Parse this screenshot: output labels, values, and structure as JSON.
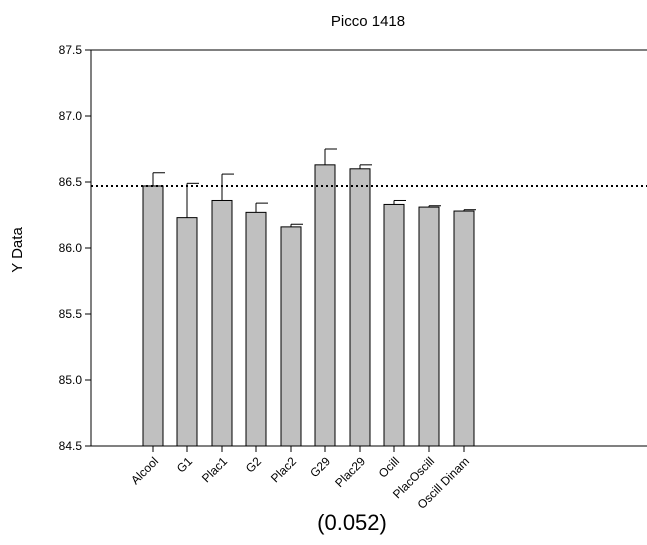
{
  "chart_data": {
    "type": "bar",
    "title": "Picco 1418",
    "xlabel": "",
    "ylabel": "Y Data",
    "footer": "(0.052)",
    "ylim": [
      84.5,
      87.5
    ],
    "yticks": [
      "84.5",
      "85.0",
      "85.5",
      "86.0",
      "86.5",
      "87.0",
      "87.5"
    ],
    "categories": [
      "Alcool",
      "G1",
      "Plac1",
      "G2",
      "Plac2",
      "G29",
      "Plac29",
      "Ocill",
      "PlacOscill",
      "Oscill Dinam"
    ],
    "groups": [
      [
        0
      ],
      [
        1,
        2
      ],
      [
        3,
        4
      ],
      [
        5,
        6
      ],
      [
        7,
        8,
        9
      ]
    ],
    "values": [
      86.47,
      86.23,
      86.36,
      86.27,
      86.16,
      86.63,
      86.6,
      86.33,
      86.31,
      86.28
    ],
    "errors": [
      0.1,
      0.26,
      0.2,
      0.07,
      0.02,
      0.12,
      0.03,
      0.03,
      0.01,
      0.01
    ],
    "reference_line": 86.47,
    "reference_line_style": "dotted",
    "bar_color": "#c0c0c0",
    "grid": false
  }
}
